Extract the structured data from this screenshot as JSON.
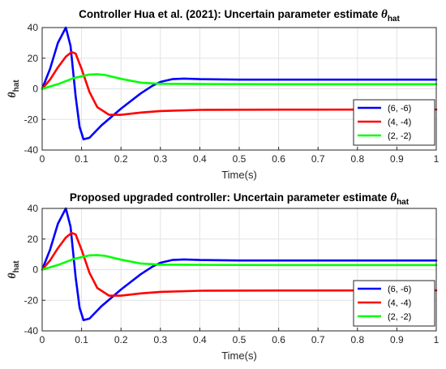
{
  "chart_data": [
    {
      "type": "line",
      "title": "Controller Hua et al. (2021): Uncertain parameter estimate ",
      "title_symbol": "θ",
      "title_subscript": "hat",
      "xlabel": "Time(s)",
      "ylabel_symbol": "θ",
      "ylabel_subscript": "hat",
      "xlim": [
        0,
        1
      ],
      "ylim": [
        -40,
        40
      ],
      "xticks": [
        "0",
        "0.1",
        "0.2",
        "0.3",
        "0.4",
        "0.5",
        "0.6",
        "0.7",
        "0.8",
        "0.9",
        "1"
      ],
      "yticks": [
        "40",
        "20",
        "0",
        "-20",
        "-40"
      ],
      "grid": true,
      "legend_position": "middle-right",
      "series": [
        {
          "name": "(6, -6)",
          "color": "#0000ff",
          "x": [
            0,
            0.02,
            0.04,
            0.06,
            0.072,
            0.085,
            0.095,
            0.105,
            0.12,
            0.15,
            0.2,
            0.25,
            0.28,
            0.3,
            0.33,
            0.36,
            0.4,
            0.5,
            0.7,
            1.0
          ],
          "y": [
            0,
            13,
            30,
            40,
            28,
            -5,
            -25,
            -33,
            -32,
            -24,
            -13,
            -3,
            2,
            4.5,
            6.3,
            6.7,
            6.3,
            6.0,
            6.0,
            6.0
          ]
        },
        {
          "name": "(4, -4)",
          "color": "#ff0000",
          "x": [
            0,
            0.02,
            0.04,
            0.06,
            0.075,
            0.085,
            0.1,
            0.12,
            0.14,
            0.17,
            0.2,
            0.25,
            0.3,
            0.4,
            0.6,
            1.0
          ],
          "y": [
            0,
            6,
            14,
            21,
            24,
            23,
            13,
            -2,
            -12,
            -17,
            -17,
            -15.5,
            -14.5,
            -13.8,
            -13.6,
            -13.5
          ]
        },
        {
          "name": "(2, -2)",
          "color": "#00ff00",
          "x": [
            0,
            0.04,
            0.08,
            0.12,
            0.14,
            0.16,
            0.2,
            0.25,
            0.3,
            0.4,
            0.6,
            1.0
          ],
          "y": [
            0,
            3,
            7,
            9.3,
            9.5,
            9,
            6.5,
            4,
            3.3,
            3.1,
            3.0,
            3.0
          ]
        }
      ]
    },
    {
      "type": "line",
      "title": "Proposed upgraded controller: Uncertain parameter estimate ",
      "title_symbol": "θ",
      "title_subscript": "hat",
      "xlabel": "Time(s)",
      "ylabel_symbol": "θ",
      "ylabel_subscript": "hat",
      "xlim": [
        0,
        1
      ],
      "ylim": [
        -40,
        40
      ],
      "xticks": [
        "0",
        "0.1",
        "0.2",
        "0.3",
        "0.4",
        "0.5",
        "0.6",
        "0.7",
        "0.8",
        "0.9",
        "1"
      ],
      "yticks": [
        "40",
        "20",
        "0",
        "-20",
        "-40"
      ],
      "grid": true,
      "legend_position": "middle-right",
      "series": [
        {
          "name": "(6, -6)",
          "color": "#0000ff",
          "x": [
            0,
            0.02,
            0.04,
            0.06,
            0.072,
            0.085,
            0.095,
            0.105,
            0.12,
            0.15,
            0.2,
            0.25,
            0.28,
            0.3,
            0.33,
            0.36,
            0.4,
            0.5,
            0.7,
            1.0
          ],
          "y": [
            0,
            13,
            30,
            40,
            28,
            -5,
            -25,
            -33,
            -32,
            -24,
            -13,
            -3,
            2,
            4.5,
            6.3,
            6.7,
            6.3,
            6.0,
            6.0,
            6.0
          ]
        },
        {
          "name": "(4, -4)",
          "color": "#ff0000",
          "x": [
            0,
            0.02,
            0.04,
            0.06,
            0.075,
            0.085,
            0.1,
            0.12,
            0.14,
            0.17,
            0.2,
            0.25,
            0.3,
            0.4,
            0.6,
            1.0
          ],
          "y": [
            0,
            6,
            14,
            21,
            24,
            23,
            13,
            -2,
            -12,
            -17,
            -17,
            -15.5,
            -14.5,
            -13.8,
            -13.6,
            -13.5
          ]
        },
        {
          "name": "(2, -2)",
          "color": "#00ff00",
          "x": [
            0,
            0.04,
            0.08,
            0.12,
            0.14,
            0.16,
            0.2,
            0.25,
            0.3,
            0.4,
            0.6,
            1.0
          ],
          "y": [
            0,
            3,
            7,
            9.3,
            9.5,
            9,
            6.5,
            4,
            3.3,
            3.1,
            3.0,
            3.0
          ]
        }
      ]
    }
  ]
}
